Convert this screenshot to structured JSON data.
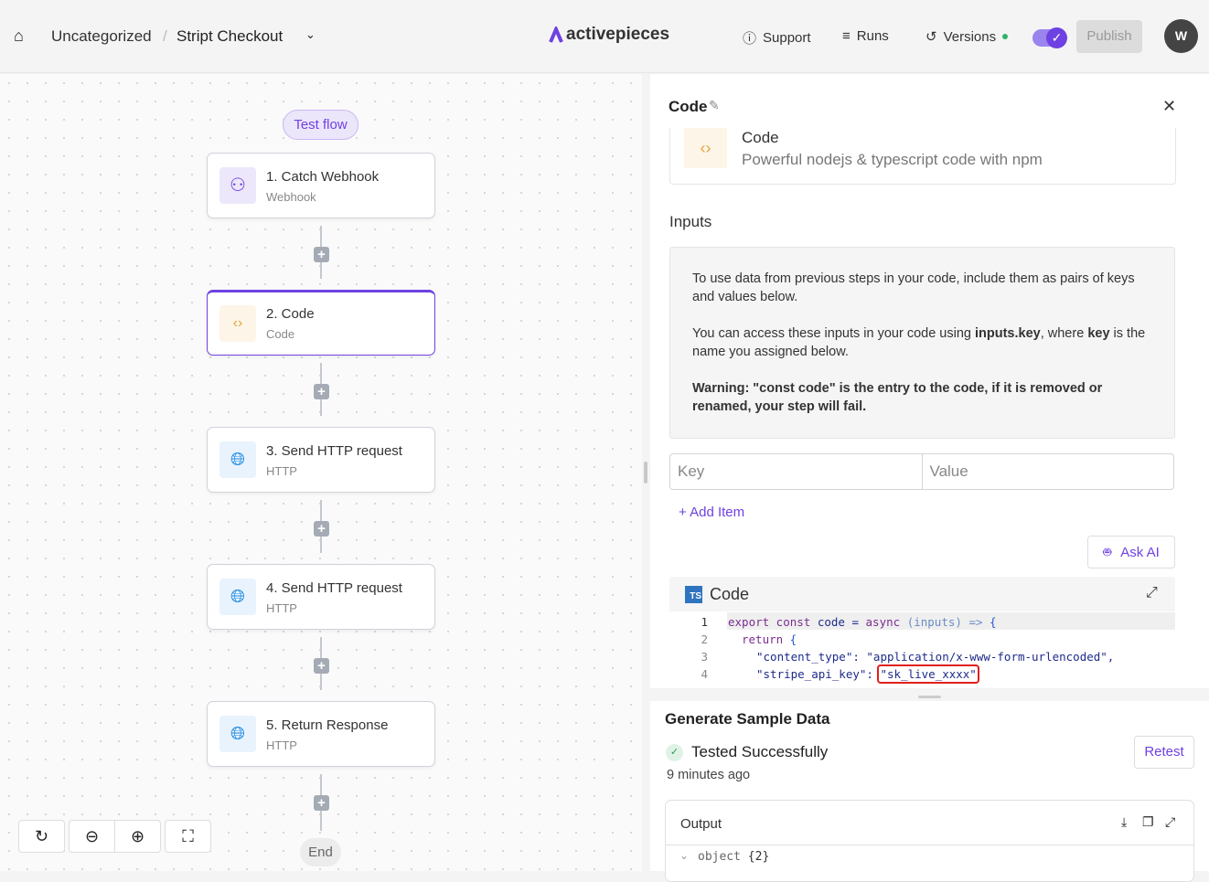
{
  "header": {
    "breadcrumb_folder": "Uncategorized",
    "breadcrumb_separator": "/",
    "flow_name": "Stript Checkout",
    "logo_text": "activepieces",
    "support_label": "Support",
    "runs_label": "Runs",
    "versions_label": "Versions",
    "publish_label": "Publish",
    "avatar_initial": "W",
    "toggle_enabled": true,
    "accent_color": "#6e41e2"
  },
  "canvas": {
    "test_flow_label": "Test flow",
    "end_label": "End",
    "steps": [
      {
        "title": "1. Catch Webhook",
        "subtitle": "Webhook",
        "icon": "webhook-icon"
      },
      {
        "title": "2. Code",
        "subtitle": "Code",
        "icon": "code-icon",
        "selected": true
      },
      {
        "title": "3. Send HTTP request",
        "subtitle": "HTTP",
        "icon": "globe-icon"
      },
      {
        "title": "4. Send HTTP request",
        "subtitle": "HTTP",
        "icon": "globe-icon"
      },
      {
        "title": "5. Return Response",
        "subtitle": "HTTP",
        "icon": "globe-icon"
      }
    ]
  },
  "panel": {
    "title": "Code",
    "piece_name": "Code",
    "piece_description": "Powerful nodejs & typescript code with npm",
    "inputs_label": "Inputs",
    "info_p1": "To use data from previous steps in your code, include them as pairs of keys and values below.",
    "info_p2_a": "You can access these inputs in your code using ",
    "info_p2_b": "inputs.key",
    "info_p2_c": ", where ",
    "info_p2_d": "key",
    "info_p2_e": " is the name you assigned below.",
    "info_p3": "Warning: \"const code\" is the entry to the code, if it is removed or renamed, your step will fail.",
    "key_placeholder": "Key",
    "value_placeholder": "Value",
    "add_item_label": "+ Add Item",
    "ask_ai_label": "Ask AI",
    "editor_badge": "TS",
    "editor_title": "Code",
    "code_lines": [
      "1",
      "2",
      "3",
      "4"
    ],
    "code_l1_a": "export const",
    "code_l1_b": " code = ",
    "code_l1_c": "async",
    "code_l1_d": " (",
    "code_l1_e": "inputs",
    "code_l1_f": ") => ",
    "code_l1_g": "{",
    "code_l2_a": "return",
    "code_l2_b": " {",
    "code_l3": "\"content_type\": \"application/x-www-form-urlencoded\",",
    "code_l4_a": "\"stripe_api_key\": ",
    "code_l4_b": "\"sk_live_xxxx\""
  },
  "sample": {
    "title": "Generate Sample Data",
    "status": "Tested Successfully",
    "time": "9 minutes ago",
    "retest_label": "Retest",
    "output_label": "Output",
    "output_tree": "object",
    "output_count": "{2}"
  }
}
